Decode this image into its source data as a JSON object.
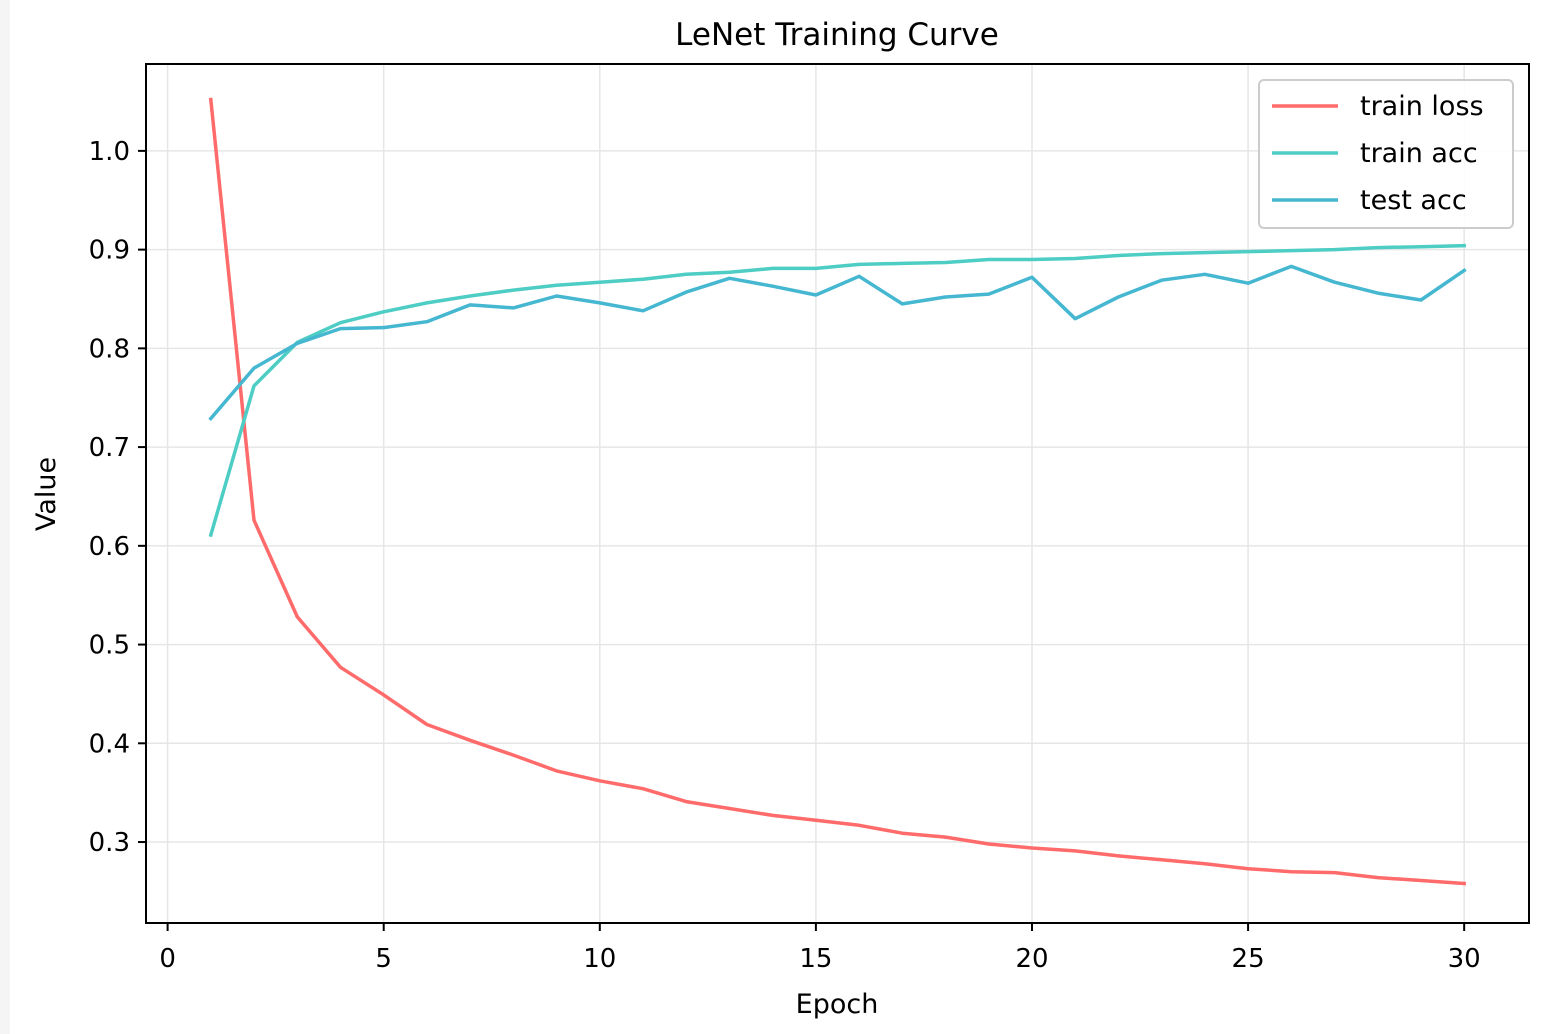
{
  "chart_data": {
    "type": "line",
    "title": "LeNet Training Curve",
    "xlabel": "Epoch",
    "ylabel": "Value",
    "xlim": [
      -0.5,
      31.5
    ],
    "ylim": [
      0.218,
      1.088
    ],
    "xticks": [
      0,
      5,
      10,
      15,
      20,
      25,
      30
    ],
    "xtick_labels": [
      "0",
      "5",
      "10",
      "15",
      "20",
      "25",
      "30"
    ],
    "yticks": [
      0.3,
      0.4,
      0.5,
      0.6,
      0.7,
      0.8,
      0.9,
      1.0
    ],
    "ytick_labels": [
      "0.3",
      "0.4",
      "0.5",
      "0.6",
      "0.7",
      "0.8",
      "0.9",
      "1.0"
    ],
    "grid": true,
    "legend_position": "top-right",
    "x": [
      1,
      2,
      3,
      4,
      5,
      6,
      7,
      8,
      9,
      10,
      11,
      12,
      13,
      14,
      15,
      16,
      17,
      18,
      19,
      20,
      21,
      22,
      23,
      24,
      25,
      26,
      27,
      28,
      29,
      30
    ],
    "series": [
      {
        "name": "train loss",
        "color": "#ff6b6b",
        "values": [
          1.052,
          0.626,
          0.528,
          0.477,
          0.449,
          0.419,
          0.403,
          0.388,
          0.372,
          0.362,
          0.354,
          0.341,
          0.334,
          0.327,
          0.322,
          0.317,
          0.309,
          0.305,
          0.298,
          0.294,
          0.291,
          0.286,
          0.282,
          0.278,
          0.273,
          0.27,
          0.269,
          0.264,
          0.261,
          0.258
        ]
      },
      {
        "name": "train acc",
        "color": "#4ecdc4",
        "values": [
          0.611,
          0.762,
          0.806,
          0.826,
          0.837,
          0.846,
          0.853,
          0.859,
          0.864,
          0.867,
          0.87,
          0.875,
          0.877,
          0.881,
          0.881,
          0.885,
          0.886,
          0.887,
          0.89,
          0.89,
          0.891,
          0.894,
          0.896,
          0.897,
          0.898,
          0.899,
          0.9,
          0.902,
          0.903,
          0.904
        ]
      },
      {
        "name": "test acc",
        "color": "#45b7d1",
        "values": [
          0.729,
          0.78,
          0.805,
          0.82,
          0.821,
          0.827,
          0.844,
          0.841,
          0.853,
          0.846,
          0.838,
          0.857,
          0.871,
          0.863,
          0.854,
          0.873,
          0.845,
          0.852,
          0.855,
          0.872,
          0.83,
          0.852,
          0.869,
          0.875,
          0.866,
          0.883,
          0.867,
          0.856,
          0.849,
          0.879
        ]
      }
    ]
  }
}
